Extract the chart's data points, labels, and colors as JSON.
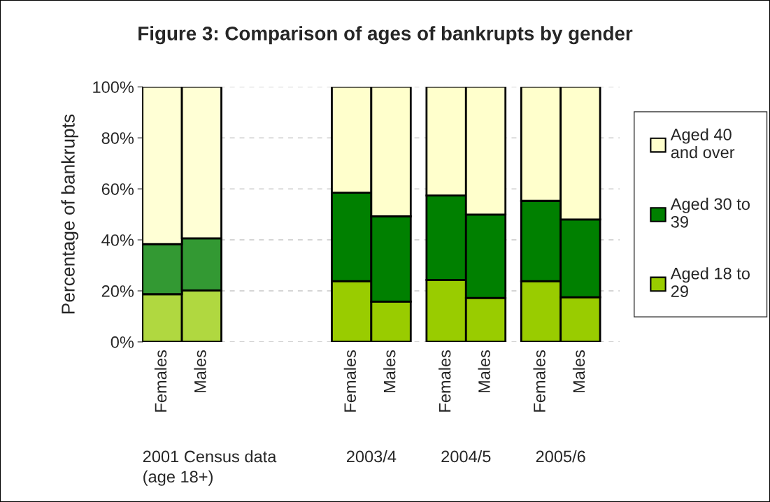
{
  "chart_data": {
    "type": "bar",
    "title": "Figure 3: Comparison of ages of bankrupts by gender",
    "ylabel": "Percentage of bankrupts",
    "categories": [
      "Females",
      "Males",
      null,
      null,
      "Females",
      "Males",
      "Females",
      "Males",
      "Females",
      "Males"
    ],
    "stacked": true,
    "series": [
      {
        "name": "Aged 18 to 29",
        "color": "#99cc00",
        "colors": [
          "#b0d840",
          "#b0d840",
          null,
          null,
          "#99cc00",
          "#99cc00",
          "#99cc00",
          "#99cc00",
          "#99cc00",
          "#99cc00"
        ],
        "values": [
          18.7,
          20.2,
          null,
          null,
          23.8,
          15.8,
          24.3,
          17.2,
          23.8,
          17.5
        ]
      },
      {
        "name": "Aged 30 to 39",
        "color": "#008000",
        "colors": [
          "#339933",
          "#339933",
          null,
          null,
          "#008000",
          "#008000",
          "#008000",
          "#008000",
          "#008000",
          "#008000"
        ],
        "values": [
          19.6,
          20.4,
          null,
          null,
          34.7,
          33.4,
          33.1,
          32.7,
          31.5,
          30.5
        ]
      },
      {
        "name": "Aged 40 and over",
        "color": "#ffffcc",
        "colors": [
          "#ffffd5",
          "#ffffd5",
          null,
          null,
          "#ffffcc",
          "#ffffcc",
          "#ffffcc",
          "#ffffcc",
          "#ffffcc",
          "#ffffcc"
        ],
        "values": [
          61.7,
          59.4,
          null,
          null,
          41.5,
          50.8,
          42.6,
          50.1,
          44.7,
          52.0
        ]
      }
    ],
    "ylim": [
      0,
      100
    ],
    "yticks": [
      {
        "value": 0,
        "label": "0%"
      },
      {
        "value": 20,
        "label": "20%"
      },
      {
        "value": 40,
        "label": "40%"
      },
      {
        "value": 60,
        "label": "60%"
      },
      {
        "value": 80,
        "label": "80%"
      },
      {
        "value": 100,
        "label": "100%"
      }
    ],
    "grid": "y",
    "legend": "right",
    "annotations": [
      "2001 Census data\n(age 18+)",
      "2003/4",
      "2004/5",
      "2005/6"
    ]
  }
}
